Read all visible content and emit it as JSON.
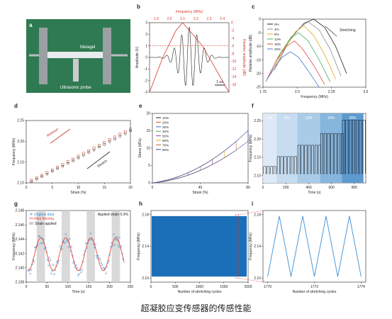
{
  "caption": "超凝胶应变传感器的传感性能",
  "panel_a": {
    "letter": "a",
    "labels": [
      "Metagel",
      "Ultrasonic probe"
    ],
    "colors": {
      "background": "#2f7a52",
      "clamp": "#9aa0a3",
      "probe": "#c9ccce",
      "gel": "#e8ecef"
    }
  },
  "chart_data": [
    {
      "panel": "b",
      "type": "line",
      "xlabel": "",
      "top_xlabel": "Frequency (MHz)",
      "top_xticks": [
        "1.9",
        "2.0",
        "2.1",
        "2.2",
        "2.3",
        "2.4"
      ],
      "top_xlim": [
        1.85,
        2.45
      ],
      "ylabel": "Amplitude (V)",
      "ylim": [
        -3,
        3
      ],
      "yticks": [
        "-3",
        "-2",
        "-1",
        "0",
        "1",
        "2",
        "3"
      ],
      "y2label": "Relative amplitude (dB)",
      "y2lim": [
        -18,
        0
      ],
      "y2ticks": [
        "0",
        "-2",
        "-4",
        "-6",
        "-8",
        "-10",
        "-12",
        "-14",
        "-16"
      ],
      "scale_bar": "1 us",
      "series": [
        {
          "color": "#222222",
          "kind": "waveform",
          "cycles": 10.5,
          "peak_amplitude": 2.6
        },
        {
          "color": "#d9352b",
          "kind": "spectrum",
          "x": [
            1.85,
            1.95,
            2.05,
            2.1,
            2.15,
            2.25,
            2.35,
            2.45
          ],
          "y": [
            -18,
            -9,
            -2,
            0,
            -2,
            -6,
            -12,
            -18
          ]
        },
        {
          "color": "#d9352b",
          "kind": "dashed-level",
          "y": -6
        }
      ]
    },
    {
      "panel": "c",
      "type": "line",
      "xlabel": "Frequency (MHz)",
      "ylabel": "Relative amplitude (dB)",
      "xlim": [
        1.75,
        2.5
      ],
      "xticks": [
        "1.75",
        "2.0",
        "2.25",
        "2.5"
      ],
      "ylim": [
        -25,
        0
      ],
      "yticks": [
        "0",
        "-5",
        "-10",
        "-15",
        "-20",
        "-25"
      ],
      "annotation": "Stretching",
      "legend_position": "top-left",
      "series": [
        {
          "name": "0%",
          "color": "#222222",
          "x": [
            1.85,
            1.95,
            2.05,
            2.12,
            2.2,
            2.28,
            2.36
          ],
          "y": [
            -17,
            -7,
            -1.5,
            0,
            -3,
            -10,
            -20
          ]
        },
        {
          "name": "4%",
          "color": "#8f8f8f",
          "x": [
            1.83,
            1.93,
            2.02,
            2.08,
            2.16,
            2.24,
            2.32
          ],
          "y": [
            -19,
            -9,
            -3,
            -1,
            -4,
            -11,
            -21
          ]
        },
        {
          "name": "8%",
          "color": "#e0a91a",
          "x": [
            1.81,
            1.9,
            1.99,
            2.05,
            2.12,
            2.2,
            2.28
          ],
          "y": [
            -20,
            -11,
            -4.5,
            -2.5,
            -6,
            -13,
            -22
          ]
        },
        {
          "name": "12%",
          "color": "#45b05f",
          "x": [
            1.79,
            1.87,
            1.95,
            2.01,
            2.08,
            2.16,
            2.24
          ],
          "y": [
            -21,
            -13,
            -7,
            -5,
            -8,
            -15,
            -23
          ]
        },
        {
          "name": "16%",
          "color": "#e24a3b",
          "x": [
            1.78,
            1.85,
            1.92,
            1.98,
            2.04,
            2.12,
            2.2
          ],
          "y": [
            -22,
            -15,
            -10,
            -8,
            -11,
            -17,
            -24
          ]
        },
        {
          "name": "20%",
          "color": "#4a78c9",
          "x": [
            1.77,
            1.83,
            1.89,
            1.95,
            2.01,
            2.08,
            2.16
          ],
          "y": [
            -23,
            -18,
            -14,
            -12,
            -14,
            -19,
            -25
          ]
        }
      ]
    },
    {
      "panel": "d",
      "type": "scatter",
      "xlabel": "Strain (%)",
      "ylabel": "Frequency (MHz)",
      "xlim": [
        0,
        20
      ],
      "xticks": [
        "0",
        "5",
        "10",
        "15",
        "20"
      ],
      "ylim": [
        2.1,
        2.25
      ],
      "yticks": [
        "2.10",
        "2.15",
        "2.20",
        "2.25"
      ],
      "annotations": [
        "Release",
        "Stretch"
      ],
      "series": [
        {
          "name": "Release",
          "color": "#c0392b",
          "x": [
            1,
            2,
            3,
            4,
            5,
            6,
            7,
            8,
            9,
            10,
            11,
            12,
            13,
            14,
            15,
            16,
            17,
            18,
            19,
            20
          ],
          "y": [
            2.106,
            2.112,
            2.118,
            2.125,
            2.131,
            2.138,
            2.144,
            2.151,
            2.157,
            2.164,
            2.171,
            2.177,
            2.184,
            2.19,
            2.197,
            2.204,
            2.21,
            2.217,
            2.223,
            2.229
          ]
        },
        {
          "name": "Stretch",
          "color": "#222222",
          "x": [
            1,
            2,
            3,
            4,
            5,
            6,
            7,
            8,
            9,
            10,
            11,
            12,
            13,
            14,
            15,
            16,
            17,
            18,
            19,
            20
          ],
          "y": [
            2.103,
            2.109,
            2.115,
            2.121,
            2.128,
            2.134,
            2.14,
            2.147,
            2.153,
            2.16,
            2.166,
            2.173,
            2.179,
            2.186,
            2.192,
            2.199,
            2.205,
            2.212,
            2.218,
            2.225
          ]
        }
      ]
    },
    {
      "panel": "e",
      "type": "line",
      "xlabel": "Strain (%)",
      "ylabel": "Stress (kPa)",
      "xlim": [
        0,
        80
      ],
      "xticks": [
        "0",
        "40",
        "80"
      ],
      "ylim": [
        0,
        20
      ],
      "yticks": [
        "0",
        "5",
        "10",
        "15",
        "20"
      ],
      "legend_position": "top-left",
      "series": [
        {
          "name": "10%",
          "color": "#222222",
          "max_strain": 10
        },
        {
          "name": "20%",
          "color": "#e24a3b",
          "max_strain": 20
        },
        {
          "name": "30%",
          "color": "#3a5cc4",
          "max_strain": 30
        },
        {
          "name": "40%",
          "color": "#45b05f",
          "max_strain": 40
        },
        {
          "name": "50%",
          "color": "#8e44ad",
          "max_strain": 50
        },
        {
          "name": "60%",
          "color": "#e0a91a",
          "max_strain": 60
        },
        {
          "name": "70%",
          "color": "#c06a3a",
          "max_strain": 70
        },
        {
          "name": "80%",
          "color": "#3d4fa8",
          "max_strain": 80
        }
      ]
    },
    {
      "panel": "f",
      "type": "line",
      "xlabel": "Time (s)",
      "ylabel": "Frequency (MHz)",
      "xlim": [
        0,
        900
      ],
      "xticks": [
        "0",
        "200",
        "400",
        "600",
        "800"
      ],
      "ylim": [
        2.08,
        2.27
      ],
      "yticks": [
        "2.10",
        "2.15",
        "2.20",
        "2.25"
      ],
      "bands": [
        {
          "label": "4%",
          "x0": 0,
          "x1": 120,
          "low": 2.105,
          "high": 2.125,
          "color": "#dde9f6"
        },
        {
          "label": "8%",
          "x0": 120,
          "x1": 300,
          "low": 2.105,
          "high": 2.152,
          "color": "#c6dcf0"
        },
        {
          "label": "12%",
          "x0": 300,
          "x1": 500,
          "low": 2.105,
          "high": 2.183,
          "color": "#a9cbe8"
        },
        {
          "label": "16%",
          "x0": 500,
          "x1": 690,
          "low": 2.105,
          "high": 2.215,
          "color": "#86b5dd"
        },
        {
          "label": "20%",
          "x0": 690,
          "x1": 880,
          "low": 2.105,
          "high": 2.252,
          "color": "#5e9acf"
        }
      ],
      "series": [
        {
          "color": "#111111",
          "kind": "square-pulses",
          "period": 30
        }
      ]
    },
    {
      "panel": "g",
      "type": "line",
      "xlabel": "Time (s)",
      "ylabel": "Frequency (MHz)",
      "xlim": [
        0,
        250
      ],
      "xticks": [
        "0",
        "50",
        "100",
        "150",
        "200",
        "250"
      ],
      "ylim": [
        2.138,
        2.148
      ],
      "yticks": [
        "2.138",
        "2.140",
        "2.142",
        "2.144",
        "2.146",
        "2.148"
      ],
      "legend_position": "top-left",
      "annotation": "Applied strain 0.3%",
      "strain_windows": [
        [
          25,
          45
        ],
        [
          85,
          105
        ],
        [
          145,
          165
        ],
        [
          205,
          225
        ]
      ],
      "series": [
        {
          "name": "Original data",
          "color": "#3b8fd4",
          "kind": "scatter"
        },
        {
          "name": "After filtering",
          "color": "#e24a3b",
          "kind": "line",
          "low": 2.1396,
          "high": 2.1442,
          "period": 60
        },
        {
          "name": "Strain applied",
          "color": "#cfcfcf",
          "kind": "band"
        }
      ]
    },
    {
      "panel": "h",
      "type": "area",
      "xlabel": "Number of stretching cycles",
      "ylabel": "Frequency (MHz)",
      "xlim": [
        0,
        2000
      ],
      "xticks": [
        "0",
        "500",
        "1000",
        "1500",
        "2000"
      ],
      "ylim": [
        2.095,
        2.185
      ],
      "yticks": [
        "2.10",
        "2.14",
        "2.18"
      ],
      "band": {
        "low": 2.102,
        "high": 2.178,
        "color": "#1a6fb8"
      },
      "zoom_window": [
        1770,
        1774
      ]
    },
    {
      "panel": "i",
      "type": "line",
      "xlabel": "Number of stretching cycles",
      "ylabel": "Frequency (MHz)",
      "xlim": [
        1769.8,
        1774.2
      ],
      "xticks": [
        "1770",
        "1772",
        "1774"
      ],
      "ylim": [
        2.095,
        2.185
      ],
      "yticks": [
        "2.10",
        "2.14",
        "2.18"
      ],
      "series": [
        {
          "color": "#3b8fd4",
          "x": [
            1770,
            1770.5,
            1771,
            1771.5,
            1772,
            1772.5,
            1773,
            1773.5,
            1774
          ],
          "y": [
            2.102,
            2.178,
            2.102,
            2.178,
            2.102,
            2.178,
            2.102,
            2.178,
            2.102
          ]
        }
      ]
    }
  ]
}
